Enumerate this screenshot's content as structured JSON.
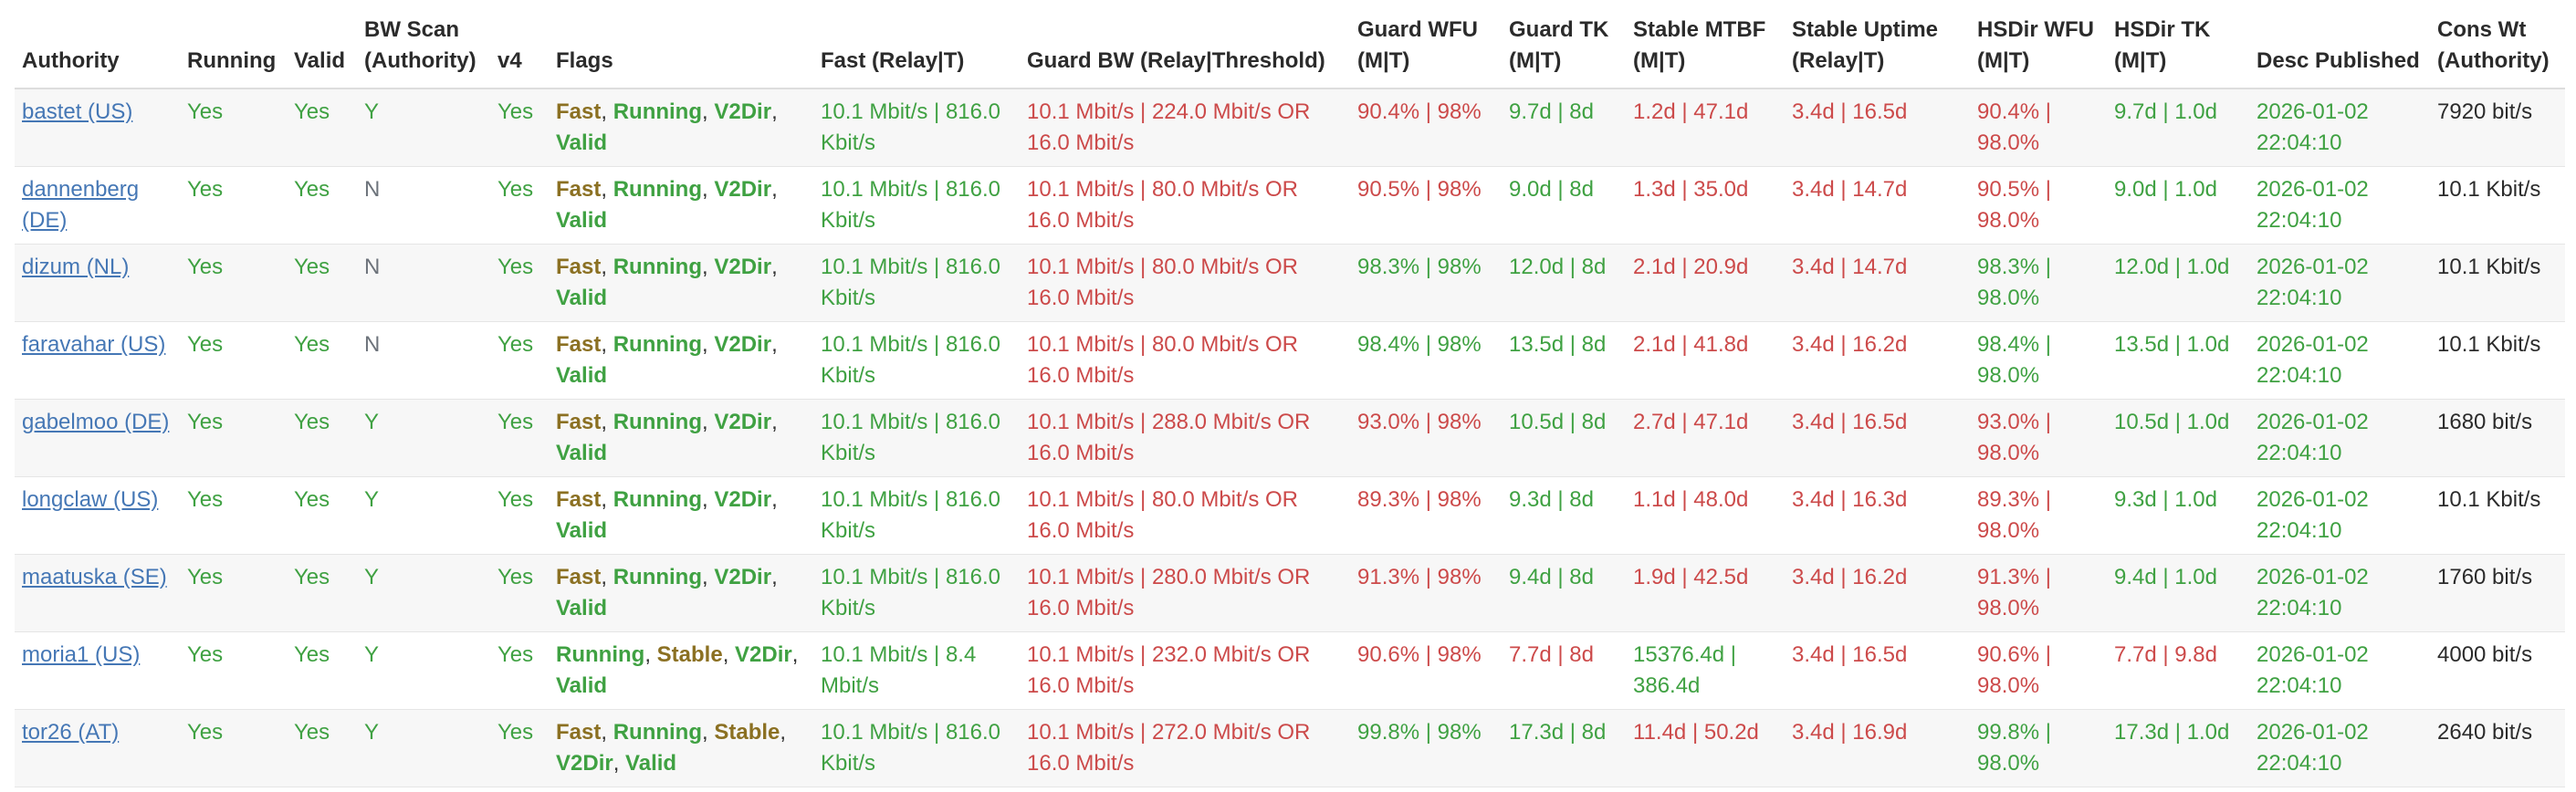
{
  "palette": {
    "green": "#3fa142",
    "red": "#cc4a4a",
    "olive": "#8b7022",
    "gray": "#6d737b",
    "link": "#4577b5",
    "text": "#2b2b2b"
  },
  "table": {
    "columns": [
      {
        "id": "authority",
        "label": "Authority"
      },
      {
        "id": "running",
        "label": "Running"
      },
      {
        "id": "valid",
        "label": "Valid"
      },
      {
        "id": "bw_scan",
        "label": "BW Scan (Authority)"
      },
      {
        "id": "v4",
        "label": "v4"
      },
      {
        "id": "flags",
        "label": "Flags"
      },
      {
        "id": "fast",
        "label": "Fast (Relay|T)"
      },
      {
        "id": "guard_bw",
        "label": "Guard BW (Relay|Threshold)"
      },
      {
        "id": "guard_wfu",
        "label": "Guard WFU (M|T)"
      },
      {
        "id": "guard_tk",
        "label": "Guard TK (M|T)"
      },
      {
        "id": "stable_mtbf",
        "label": "Stable MTBF (M|T)"
      },
      {
        "id": "stable_uptime",
        "label": "Stable Uptime (Relay|T)"
      },
      {
        "id": "hsdir_wfu",
        "label": "HSDir WFU (M|T)"
      },
      {
        "id": "hsdir_tk",
        "label": "HSDir TK (M|T)"
      },
      {
        "id": "desc_published",
        "label": "Desc Published"
      },
      {
        "id": "cons_wt",
        "label": "Cons Wt (Authority)"
      }
    ],
    "rows": [
      {
        "authority": {
          "text": "bastet (US)",
          "color": "link"
        },
        "running": {
          "text": "Yes",
          "color": "green"
        },
        "valid": {
          "text": "Yes",
          "color": "green"
        },
        "bw_scan": {
          "text": "Y",
          "color": "green"
        },
        "v4": {
          "text": "Yes",
          "color": "green"
        },
        "flags": [
          {
            "label": "Fast",
            "color": "olive"
          },
          {
            "label": "Running",
            "color": "green"
          },
          {
            "label": "V2Dir",
            "color": "green"
          },
          {
            "label": "Valid",
            "color": "green"
          }
        ],
        "fast": {
          "text": "10.1 Mbit/s | 816.0 Kbit/s",
          "color": "green"
        },
        "guard_bw": {
          "text": "10.1 Mbit/s | 224.0 Mbit/s OR 16.0 Mbit/s",
          "color": "red"
        },
        "guard_wfu": {
          "text": "90.4% | 98%",
          "color": "red"
        },
        "guard_tk": {
          "text": "9.7d | 8d",
          "color": "green"
        },
        "stable_mtbf": {
          "text": "1.2d | 47.1d",
          "color": "red"
        },
        "stable_uptime": {
          "text": "3.4d | 16.5d",
          "color": "red"
        },
        "hsdir_wfu": {
          "text": "90.4% | 98.0%",
          "color": "red"
        },
        "hsdir_tk": {
          "text": "9.7d | 1.0d",
          "color": "green"
        },
        "desc_published": {
          "text": "2026-01-02 22:04:10",
          "color": "green"
        },
        "cons_wt": {
          "text": "7920 bit/s",
          "color": "text"
        }
      },
      {
        "authority": {
          "text": "dannenberg (DE)",
          "color": "link"
        },
        "running": {
          "text": "Yes",
          "color": "green"
        },
        "valid": {
          "text": "Yes",
          "color": "green"
        },
        "bw_scan": {
          "text": "N",
          "color": "gray"
        },
        "v4": {
          "text": "Yes",
          "color": "green"
        },
        "flags": [
          {
            "label": "Fast",
            "color": "olive"
          },
          {
            "label": "Running",
            "color": "green"
          },
          {
            "label": "V2Dir",
            "color": "green"
          },
          {
            "label": "Valid",
            "color": "green"
          }
        ],
        "fast": {
          "text": "10.1 Mbit/s | 816.0 Kbit/s",
          "color": "green"
        },
        "guard_bw": {
          "text": "10.1 Mbit/s | 80.0 Mbit/s OR 16.0 Mbit/s",
          "color": "red"
        },
        "guard_wfu": {
          "text": "90.5% | 98%",
          "color": "red"
        },
        "guard_tk": {
          "text": "9.0d | 8d",
          "color": "green"
        },
        "stable_mtbf": {
          "text": "1.3d | 35.0d",
          "color": "red"
        },
        "stable_uptime": {
          "text": "3.4d | 14.7d",
          "color": "red"
        },
        "hsdir_wfu": {
          "text": "90.5% | 98.0%",
          "color": "red"
        },
        "hsdir_tk": {
          "text": "9.0d | 1.0d",
          "color": "green"
        },
        "desc_published": {
          "text": "2026-01-02 22:04:10",
          "color": "green"
        },
        "cons_wt": {
          "text": "10.1 Kbit/s",
          "color": "text"
        }
      },
      {
        "authority": {
          "text": "dizum (NL)",
          "color": "link"
        },
        "running": {
          "text": "Yes",
          "color": "green"
        },
        "valid": {
          "text": "Yes",
          "color": "green"
        },
        "bw_scan": {
          "text": "N",
          "color": "gray"
        },
        "v4": {
          "text": "Yes",
          "color": "green"
        },
        "flags": [
          {
            "label": "Fast",
            "color": "olive"
          },
          {
            "label": "Running",
            "color": "green"
          },
          {
            "label": "V2Dir",
            "color": "green"
          },
          {
            "label": "Valid",
            "color": "green"
          }
        ],
        "fast": {
          "text": "10.1 Mbit/s | 816.0 Kbit/s",
          "color": "green"
        },
        "guard_bw": {
          "text": "10.1 Mbit/s | 80.0 Mbit/s OR 16.0 Mbit/s",
          "color": "red"
        },
        "guard_wfu": {
          "text": "98.3% | 98%",
          "color": "green"
        },
        "guard_tk": {
          "text": "12.0d | 8d",
          "color": "green"
        },
        "stable_mtbf": {
          "text": "2.1d | 20.9d",
          "color": "red"
        },
        "stable_uptime": {
          "text": "3.4d | 14.7d",
          "color": "red"
        },
        "hsdir_wfu": {
          "text": "98.3% | 98.0%",
          "color": "green"
        },
        "hsdir_tk": {
          "text": "12.0d | 1.0d",
          "color": "green"
        },
        "desc_published": {
          "text": "2026-01-02 22:04:10",
          "color": "green"
        },
        "cons_wt": {
          "text": "10.1 Kbit/s",
          "color": "text"
        }
      },
      {
        "authority": {
          "text": "faravahar (US)",
          "color": "link"
        },
        "running": {
          "text": "Yes",
          "color": "green"
        },
        "valid": {
          "text": "Yes",
          "color": "green"
        },
        "bw_scan": {
          "text": "N",
          "color": "gray"
        },
        "v4": {
          "text": "Yes",
          "color": "green"
        },
        "flags": [
          {
            "label": "Fast",
            "color": "olive"
          },
          {
            "label": "Running",
            "color": "green"
          },
          {
            "label": "V2Dir",
            "color": "green"
          },
          {
            "label": "Valid",
            "color": "green"
          }
        ],
        "fast": {
          "text": "10.1 Mbit/s | 816.0 Kbit/s",
          "color": "green"
        },
        "guard_bw": {
          "text": "10.1 Mbit/s | 80.0 Mbit/s OR 16.0 Mbit/s",
          "color": "red"
        },
        "guard_wfu": {
          "text": "98.4% | 98%",
          "color": "green"
        },
        "guard_tk": {
          "text": "13.5d | 8d",
          "color": "green"
        },
        "stable_mtbf": {
          "text": "2.1d | 41.8d",
          "color": "red"
        },
        "stable_uptime": {
          "text": "3.4d | 16.2d",
          "color": "red"
        },
        "hsdir_wfu": {
          "text": "98.4% | 98.0%",
          "color": "green"
        },
        "hsdir_tk": {
          "text": "13.5d | 1.0d",
          "color": "green"
        },
        "desc_published": {
          "text": "2026-01-02 22:04:10",
          "color": "green"
        },
        "cons_wt": {
          "text": "10.1 Kbit/s",
          "color": "text"
        }
      },
      {
        "authority": {
          "text": "gabelmoo (DE)",
          "color": "link"
        },
        "running": {
          "text": "Yes",
          "color": "green"
        },
        "valid": {
          "text": "Yes",
          "color": "green"
        },
        "bw_scan": {
          "text": "Y",
          "color": "green"
        },
        "v4": {
          "text": "Yes",
          "color": "green"
        },
        "flags": [
          {
            "label": "Fast",
            "color": "olive"
          },
          {
            "label": "Running",
            "color": "green"
          },
          {
            "label": "V2Dir",
            "color": "green"
          },
          {
            "label": "Valid",
            "color": "green"
          }
        ],
        "fast": {
          "text": "10.1 Mbit/s | 816.0 Kbit/s",
          "color": "green"
        },
        "guard_bw": {
          "text": "10.1 Mbit/s | 288.0 Mbit/s OR 16.0 Mbit/s",
          "color": "red"
        },
        "guard_wfu": {
          "text": "93.0% | 98%",
          "color": "red"
        },
        "guard_tk": {
          "text": "10.5d | 8d",
          "color": "green"
        },
        "stable_mtbf": {
          "text": "2.7d | 47.1d",
          "color": "red"
        },
        "stable_uptime": {
          "text": "3.4d | 16.5d",
          "color": "red"
        },
        "hsdir_wfu": {
          "text": "93.0% | 98.0%",
          "color": "red"
        },
        "hsdir_tk": {
          "text": "10.5d | 1.0d",
          "color": "green"
        },
        "desc_published": {
          "text": "2026-01-02 22:04:10",
          "color": "green"
        },
        "cons_wt": {
          "text": "1680 bit/s",
          "color": "text"
        }
      },
      {
        "authority": {
          "text": "longclaw (US)",
          "color": "link"
        },
        "running": {
          "text": "Yes",
          "color": "green"
        },
        "valid": {
          "text": "Yes",
          "color": "green"
        },
        "bw_scan": {
          "text": "Y",
          "color": "green"
        },
        "v4": {
          "text": "Yes",
          "color": "green"
        },
        "flags": [
          {
            "label": "Fast",
            "color": "olive"
          },
          {
            "label": "Running",
            "color": "green"
          },
          {
            "label": "V2Dir",
            "color": "green"
          },
          {
            "label": "Valid",
            "color": "green"
          }
        ],
        "fast": {
          "text": "10.1 Mbit/s | 816.0 Kbit/s",
          "color": "green"
        },
        "guard_bw": {
          "text": "10.1 Mbit/s | 80.0 Mbit/s OR 16.0 Mbit/s",
          "color": "red"
        },
        "guard_wfu": {
          "text": "89.3% | 98%",
          "color": "red"
        },
        "guard_tk": {
          "text": "9.3d | 8d",
          "color": "green"
        },
        "stable_mtbf": {
          "text": "1.1d | 48.0d",
          "color": "red"
        },
        "stable_uptime": {
          "text": "3.4d | 16.3d",
          "color": "red"
        },
        "hsdir_wfu": {
          "text": "89.3% | 98.0%",
          "color": "red"
        },
        "hsdir_tk": {
          "text": "9.3d | 1.0d",
          "color": "green"
        },
        "desc_published": {
          "text": "2026-01-02 22:04:10",
          "color": "green"
        },
        "cons_wt": {
          "text": "10.1 Kbit/s",
          "color": "text"
        }
      },
      {
        "authority": {
          "text": "maatuska (SE)",
          "color": "link"
        },
        "running": {
          "text": "Yes",
          "color": "green"
        },
        "valid": {
          "text": "Yes",
          "color": "green"
        },
        "bw_scan": {
          "text": "Y",
          "color": "green"
        },
        "v4": {
          "text": "Yes",
          "color": "green"
        },
        "flags": [
          {
            "label": "Fast",
            "color": "olive"
          },
          {
            "label": "Running",
            "color": "green"
          },
          {
            "label": "V2Dir",
            "color": "green"
          },
          {
            "label": "Valid",
            "color": "green"
          }
        ],
        "fast": {
          "text": "10.1 Mbit/s | 816.0 Kbit/s",
          "color": "green"
        },
        "guard_bw": {
          "text": "10.1 Mbit/s | 280.0 Mbit/s OR 16.0 Mbit/s",
          "color": "red"
        },
        "guard_wfu": {
          "text": "91.3% | 98%",
          "color": "red"
        },
        "guard_tk": {
          "text": "9.4d | 8d",
          "color": "green"
        },
        "stable_mtbf": {
          "text": "1.9d | 42.5d",
          "color": "red"
        },
        "stable_uptime": {
          "text": "3.4d | 16.2d",
          "color": "red"
        },
        "hsdir_wfu": {
          "text": "91.3% | 98.0%",
          "color": "red"
        },
        "hsdir_tk": {
          "text": "9.4d | 1.0d",
          "color": "green"
        },
        "desc_published": {
          "text": "2026-01-02 22:04:10",
          "color": "green"
        },
        "cons_wt": {
          "text": "1760 bit/s",
          "color": "text"
        }
      },
      {
        "authority": {
          "text": "moria1 (US)",
          "color": "link"
        },
        "running": {
          "text": "Yes",
          "color": "green"
        },
        "valid": {
          "text": "Yes",
          "color": "green"
        },
        "bw_scan": {
          "text": "Y",
          "color": "green"
        },
        "v4": {
          "text": "Yes",
          "color": "green"
        },
        "flags": [
          {
            "label": "Running",
            "color": "green"
          },
          {
            "label": "Stable",
            "color": "olive"
          },
          {
            "label": "V2Dir",
            "color": "green"
          },
          {
            "label": "Valid",
            "color": "green"
          }
        ],
        "fast": {
          "text": "10.1 Mbit/s | 8.4 Mbit/s",
          "color": "green"
        },
        "guard_bw": {
          "text": "10.1 Mbit/s | 232.0 Mbit/s OR 16.0 Mbit/s",
          "color": "red"
        },
        "guard_wfu": {
          "text": "90.6% | 98%",
          "color": "red"
        },
        "guard_tk": {
          "text": "7.7d | 8d",
          "color": "red"
        },
        "stable_mtbf": {
          "text": "15376.4d | 386.4d",
          "color": "green"
        },
        "stable_uptime": {
          "text": "3.4d | 16.5d",
          "color": "red"
        },
        "hsdir_wfu": {
          "text": "90.6% | 98.0%",
          "color": "red"
        },
        "hsdir_tk": {
          "text": "7.7d | 9.8d",
          "color": "red"
        },
        "desc_published": {
          "text": "2026-01-02 22:04:10",
          "color": "green"
        },
        "cons_wt": {
          "text": "4000 bit/s",
          "color": "text"
        }
      },
      {
        "authority": {
          "text": "tor26 (AT)",
          "color": "link"
        },
        "running": {
          "text": "Yes",
          "color": "green"
        },
        "valid": {
          "text": "Yes",
          "color": "green"
        },
        "bw_scan": {
          "text": "Y",
          "color": "green"
        },
        "v4": {
          "text": "Yes",
          "color": "green"
        },
        "flags": [
          {
            "label": "Fast",
            "color": "olive"
          },
          {
            "label": "Running",
            "color": "green"
          },
          {
            "label": "Stable",
            "color": "olive"
          },
          {
            "label": "V2Dir",
            "color": "green"
          },
          {
            "label": "Valid",
            "color": "green"
          }
        ],
        "fast": {
          "text": "10.1 Mbit/s | 816.0 Kbit/s",
          "color": "green"
        },
        "guard_bw": {
          "text": "10.1 Mbit/s | 272.0 Mbit/s OR 16.0 Mbit/s",
          "color": "red"
        },
        "guard_wfu": {
          "text": "99.8% | 98%",
          "color": "green"
        },
        "guard_tk": {
          "text": "17.3d | 8d",
          "color": "green"
        },
        "stable_mtbf": {
          "text": "11.4d | 50.2d",
          "color": "red"
        },
        "stable_uptime": {
          "text": "3.4d | 16.9d",
          "color": "red"
        },
        "hsdir_wfu": {
          "text": "99.8% | 98.0%",
          "color": "green"
        },
        "hsdir_tk": {
          "text": "17.3d | 1.0d",
          "color": "green"
        },
        "desc_published": {
          "text": "2026-01-02 22:04:10",
          "color": "green"
        },
        "cons_wt": {
          "text": "2640 bit/s",
          "color": "text"
        }
      }
    ]
  }
}
